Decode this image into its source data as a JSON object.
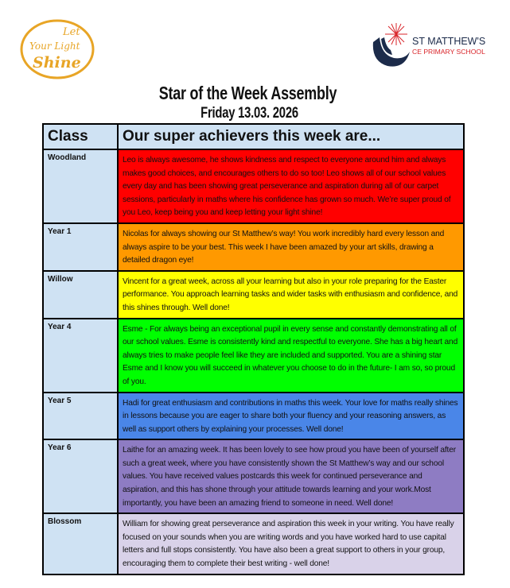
{
  "logos": {
    "left": "Let Your Light Shine",
    "right_line1": "ST MATTHEW'S",
    "right_line2": "CE PRIMARY SCHOOL"
  },
  "title": "Star of the Week Assembly",
  "date": "Friday 13.03. 2026",
  "table": {
    "headers": [
      "Class",
      "Our super achievers this week are..."
    ],
    "rows": [
      {
        "class": "Woodland",
        "color": "#ff0000",
        "text": " Leo is always awesome, he shows kindness and respect to everyone around him and always makes good choices, and encourages others to do so too! Leo shows all of our school values every day and has been showing great perseverance and aspiration during all of our carpet sessions, particularly in maths where his confidence has grown so much. We’re super proud of you Leo, keep being you and keep letting your light shine!"
      },
      {
        "class": "Year 1",
        "color": "#ff9900",
        "text": "Nicolas for always showing our St Matthew’s way! You work incredibly hard every lesson and always aspire to be your best. This week I have been amazed by your art skills, drawing a detailed dragon eye!"
      },
      {
        "class": "Willow",
        "color": "#ffff00",
        "text": "Vincent for a great week, across all your learning but also in your role preparing for the Easter performance. You approach learning tasks and wider tasks with enthusiasm and confidence, and this shines through. Well done!"
      },
      {
        "class": "Year 4",
        "color": "#00ff00",
        "text": "Esme - For always being an exceptional pupil in every sense and constantly demonstrating all of our school values. Esme is consistently kind and respectful to everyone. She has a big heart and always tries to make people feel like they are included and supported. You are a shining star Esme and I know you will succeed in whatever you choose to do in the future- I am so, so proud of you."
      },
      {
        "class": "Year 5",
        "color": "#4a86e8",
        "text": "Hadi for great enthusiasm and contributions in maths this week. Your love for maths really shines in lessons because you are eager to share both your fluency and your reasoning answers, as well as support others by explaining your processes. Well done!"
      },
      {
        "class": "Year 6",
        "color": "#8e7cc3",
        "text": "Laithe for an amazing week. It has been lovely to see how proud you have been of yourself after such a great week, where you have consistently shown the St Matthew’s way and our school values. You have received values postcards this week for continued perseverance and aspiration, and this has shone through your attitude towards learning and your work.Most importantly, you have been an amazing friend to someone in need.  Well done!"
      },
      {
        "class": "Blossom",
        "color": "#d9d2e9",
        "text": "William for showing great perseverance and aspiration this week in your writing. You have really focused on your sounds when you are writing words and you have worked hard to use capital letters and full stops consistently. You have also been a great support to others in your group, encouraging them to complete their best writing - well done!"
      }
    ]
  }
}
